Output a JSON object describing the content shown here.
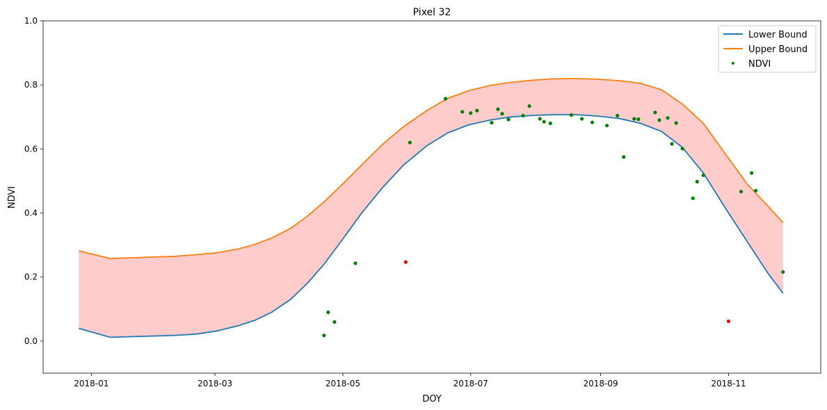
{
  "chart_data": {
    "type": "line",
    "title": "Pixel 32",
    "xlabel": "DOY",
    "ylabel": "NDVI",
    "xlim": [
      "2017-12-09",
      "2018-12-15"
    ],
    "ylim": [
      -0.1,
      1.0
    ],
    "x_ticks": [
      "2018-01-01",
      "2018-03-01",
      "2018-05-01",
      "2018-07-01",
      "2018-09-01",
      "2018-11-01"
    ],
    "x_tick_labels": [
      "2018-01",
      "2018-03",
      "2018-05",
      "2018-07",
      "2018-09",
      "2018-11"
    ],
    "y_ticks": [
      0.0,
      0.2,
      0.4,
      0.6,
      0.8,
      1.0
    ],
    "y_tick_labels": [
      "0.0",
      "0.2",
      "0.4",
      "0.6",
      "0.8",
      "1.0"
    ],
    "grid": false,
    "legend_position": "top-right",
    "colors": {
      "lower": "#1f77b4",
      "upper": "#ff7f0e",
      "band": "#ffcccc",
      "ndvi": "#008000",
      "outlier": "#ff0000"
    },
    "series": [
      {
        "name": "Lower Bound",
        "kind": "line",
        "x": [
          "2017-12-26",
          "2018-01-10",
          "2018-02-10",
          "2018-02-20",
          "2018-03-02",
          "2018-03-12",
          "2018-03-20",
          "2018-03-28",
          "2018-04-06",
          "2018-04-14",
          "2018-04-22",
          "2018-04-30",
          "2018-05-10",
          "2018-05-20",
          "2018-05-30",
          "2018-06-10",
          "2018-06-20",
          "2018-06-30",
          "2018-07-10",
          "2018-07-20",
          "2018-07-31",
          "2018-08-10",
          "2018-08-20",
          "2018-08-30",
          "2018-09-10",
          "2018-09-20",
          "2018-09-30",
          "2018-10-10",
          "2018-10-20",
          "2018-10-31",
          "2018-11-10",
          "2018-11-20",
          "2018-11-27"
        ],
        "y": [
          0.04,
          0.012,
          0.018,
          0.022,
          0.032,
          0.048,
          0.065,
          0.09,
          0.13,
          0.18,
          0.24,
          0.31,
          0.4,
          0.48,
          0.55,
          0.61,
          0.65,
          0.675,
          0.69,
          0.7,
          0.705,
          0.707,
          0.707,
          0.703,
          0.695,
          0.68,
          0.655,
          0.605,
          0.525,
          0.41,
          0.31,
          0.21,
          0.15
        ]
      },
      {
        "name": "Upper Bound",
        "kind": "line",
        "x": [
          "2017-12-26",
          "2018-01-10",
          "2018-02-10",
          "2018-02-20",
          "2018-03-02",
          "2018-03-12",
          "2018-03-20",
          "2018-03-28",
          "2018-04-06",
          "2018-04-14",
          "2018-04-22",
          "2018-04-30",
          "2018-05-10",
          "2018-05-20",
          "2018-05-30",
          "2018-06-10",
          "2018-06-20",
          "2018-06-30",
          "2018-07-10",
          "2018-07-20",
          "2018-07-31",
          "2018-08-10",
          "2018-08-20",
          "2018-08-30",
          "2018-09-10",
          "2018-09-20",
          "2018-09-30",
          "2018-10-10",
          "2018-10-20",
          "2018-10-31",
          "2018-11-10",
          "2018-11-20",
          "2018-11-27"
        ],
        "y": [
          0.282,
          0.258,
          0.265,
          0.27,
          0.276,
          0.288,
          0.302,
          0.322,
          0.352,
          0.39,
          0.435,
          0.485,
          0.55,
          0.615,
          0.67,
          0.72,
          0.758,
          0.782,
          0.798,
          0.808,
          0.815,
          0.819,
          0.82,
          0.818,
          0.813,
          0.805,
          0.785,
          0.74,
          0.68,
          0.58,
          0.49,
          0.42,
          0.37
        ]
      },
      {
        "name": "NDVI",
        "kind": "scatter",
        "x": [
          "2018-04-22",
          "2018-04-24",
          "2018-04-27",
          "2018-05-07",
          "2018-06-02",
          "2018-06-19",
          "2018-06-27",
          "2018-07-01",
          "2018-07-04",
          "2018-07-11",
          "2018-07-14",
          "2018-07-16",
          "2018-07-19",
          "2018-07-26",
          "2018-07-29",
          "2018-08-03",
          "2018-08-05",
          "2018-08-08",
          "2018-08-18",
          "2018-08-23",
          "2018-08-28",
          "2018-09-04",
          "2018-09-09",
          "2018-09-12",
          "2018-09-17",
          "2018-09-19",
          "2018-09-27",
          "2018-09-29",
          "2018-10-03",
          "2018-10-05",
          "2018-10-07",
          "2018-10-10",
          "2018-10-15",
          "2018-10-17",
          "2018-10-20",
          "2018-11-07",
          "2018-11-12",
          "2018-11-14",
          "2018-11-27"
        ],
        "y": [
          0.018,
          0.09,
          0.06,
          0.243,
          0.62,
          0.757,
          0.716,
          0.712,
          0.72,
          0.682,
          0.724,
          0.71,
          0.692,
          0.704,
          0.734,
          0.694,
          0.685,
          0.68,
          0.706,
          0.694,
          0.683,
          0.673,
          0.704,
          0.575,
          0.694,
          0.693,
          0.714,
          0.69,
          0.697,
          0.616,
          0.681,
          0.601,
          0.446,
          0.498,
          0.518,
          0.467,
          0.525,
          0.47,
          0.216
        ]
      },
      {
        "kind": "scatter",
        "x": [
          "2018-05-31",
          "2018-11-01"
        ],
        "y": [
          0.247,
          0.062
        ]
      }
    ]
  },
  "legend": [
    {
      "label": "Lower Bound",
      "kind": "line",
      "color": "#1f77b4"
    },
    {
      "label": "Upper Bound",
      "kind": "line",
      "color": "#ff7f0e"
    },
    {
      "label": "NDVI",
      "kind": "dot",
      "color": "#008000"
    }
  ]
}
